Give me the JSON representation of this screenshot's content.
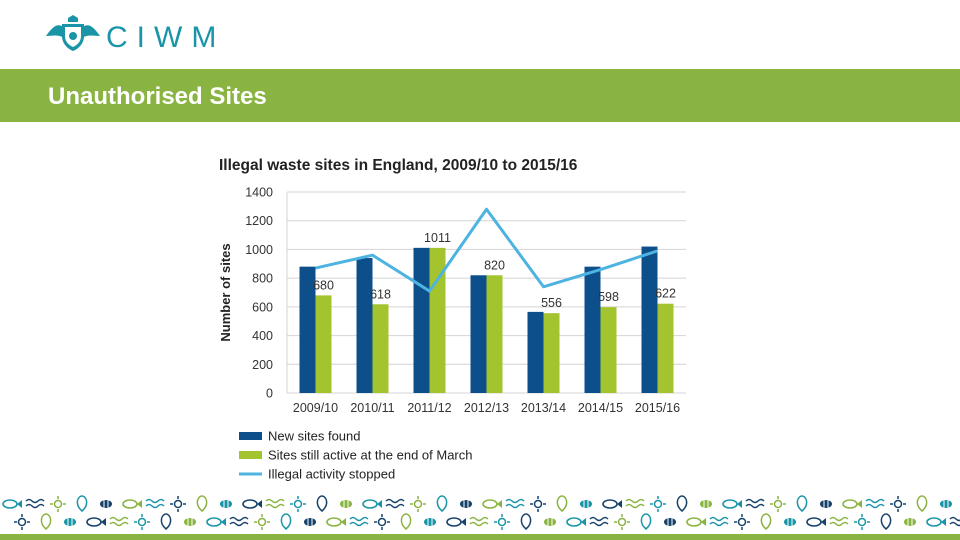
{
  "brand": {
    "name": "CIWM",
    "teal": "#1a95a8",
    "green": "#8ab441"
  },
  "slide": {
    "title": "Unauthorised Sites"
  },
  "chart_data": {
    "type": "bar",
    "title": "Illegal waste sites in England, 2009/10 to 2015/16",
    "xlabel": "",
    "ylabel": "Number of sites",
    "ylim": [
      0,
      1400
    ],
    "yticks": [
      0,
      200,
      400,
      600,
      800,
      1000,
      1200,
      1400
    ],
    "grid": true,
    "legend_position": "bottom-left",
    "categories": [
      "2009/10",
      "2010/11",
      "2011/12",
      "2012/13",
      "2013/14",
      "2014/15",
      "2015/16"
    ],
    "series": [
      {
        "name": "New sites found",
        "kind": "bar",
        "color": "#0d4f8b",
        "values": [
          880,
          940,
          1011,
          820,
          565,
          880,
          1020
        ]
      },
      {
        "name": "Sites still active at the end of March",
        "kind": "bar",
        "color": "#a3c42e",
        "values": [
          680,
          618,
          1011,
          820,
          556,
          598,
          622
        ],
        "labels": [
          "680",
          "618",
          "1011",
          "820",
          "556",
          "598",
          "622"
        ]
      },
      {
        "name": "Illegal activity stopped",
        "kind": "line",
        "color": "#4db3e0",
        "values": [
          870,
          960,
          710,
          1280,
          740,
          860,
          990
        ]
      }
    ]
  }
}
